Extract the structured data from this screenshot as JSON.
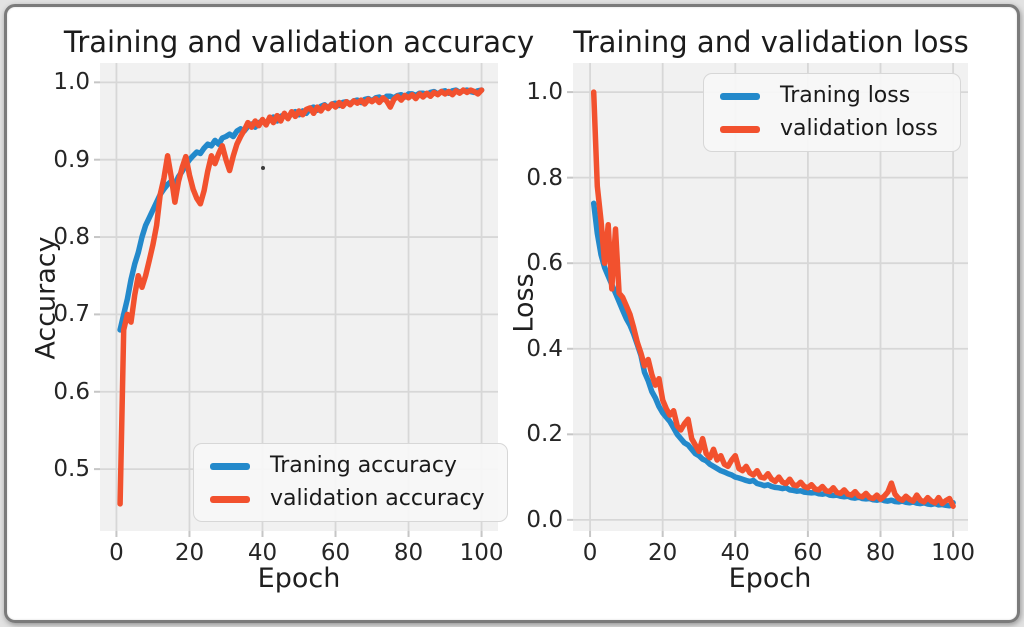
{
  "figure": {
    "background": "#ffffff",
    "outer_background": "#e2e2e2",
    "frame_border_color": "#7b7b7b"
  },
  "colors": {
    "plot_background": "#f1f1f1",
    "gridline": "#d7d7d7",
    "tick_mark": "#c6c6c6",
    "text": "#262626",
    "training_line": "#2389cb",
    "validation_line": "#f2512e",
    "legend_background": "#f7f7f7"
  },
  "chart_data": [
    {
      "type": "line",
      "title": "Training and validation accuracy",
      "xlabel": "Epoch",
      "ylabel": "Accuracy",
      "x_ticks": [
        0,
        20,
        40,
        60,
        80,
        100
      ],
      "x_tick_labels": [
        "0",
        "20",
        "40",
        "60",
        "80",
        "100"
      ],
      "y_ticks": [
        1.0,
        0.9,
        0.8,
        0.7,
        0.6,
        0.5
      ],
      "y_tick_labels": [
        "1.0",
        "0.9",
        "0.8",
        "0.7",
        "0.6",
        "0.5"
      ],
      "xlim": [
        -4.5,
        104.5
      ],
      "ylim": [
        0.42,
        1.025
      ],
      "grid": true,
      "legend_position": "lower right",
      "epochs": {
        "from": 1,
        "to": 100,
        "step": 1
      },
      "series": [
        {
          "name": "Traning accuracy",
          "color": "#2389cb",
          "values": [
            0.68,
            0.7,
            0.72,
            0.745,
            0.765,
            0.78,
            0.8,
            0.815,
            0.825,
            0.835,
            0.845,
            0.855,
            0.862,
            0.868,
            0.872,
            0.868,
            0.878,
            0.885,
            0.893,
            0.9,
            0.905,
            0.91,
            0.908,
            0.915,
            0.92,
            0.918,
            0.925,
            0.92,
            0.928,
            0.93,
            0.933,
            0.93,
            0.937,
            0.94,
            0.937,
            0.943,
            0.946,
            0.942,
            0.948,
            0.95,
            0.947,
            0.952,
            0.955,
            0.95,
            0.956,
            0.958,
            0.954,
            0.96,
            0.962,
            0.958,
            0.963,
            0.96,
            0.966,
            0.968,
            0.964,
            0.969,
            0.971,
            0.967,
            0.972,
            0.973,
            0.97,
            0.974,
            0.975,
            0.972,
            0.976,
            0.977,
            0.974,
            0.978,
            0.979,
            0.976,
            0.98,
            0.981,
            0.978,
            0.982,
            0.982,
            0.98,
            0.983,
            0.984,
            0.981,
            0.985,
            0.985,
            0.983,
            0.986,
            0.986,
            0.984,
            0.987,
            0.988,
            0.985,
            0.988,
            0.989,
            0.986,
            0.989,
            0.99,
            0.987,
            0.989,
            0.99,
            0.988,
            0.987,
            0.989,
            0.99
          ]
        },
        {
          "name": "validation accuracy",
          "color": "#f2512e",
          "values": [
            0.455,
            0.68,
            0.7,
            0.69,
            0.725,
            0.75,
            0.735,
            0.75,
            0.77,
            0.79,
            0.815,
            0.855,
            0.876,
            0.905,
            0.878,
            0.845,
            0.872,
            0.89,
            0.904,
            0.88,
            0.862,
            0.85,
            0.843,
            0.86,
            0.885,
            0.905,
            0.895,
            0.908,
            0.918,
            0.9,
            0.886,
            0.905,
            0.92,
            0.93,
            0.938,
            0.948,
            0.942,
            0.95,
            0.944,
            0.952,
            0.945,
            0.955,
            0.948,
            0.957,
            0.95,
            0.96,
            0.953,
            0.962,
            0.956,
            0.963,
            0.958,
            0.965,
            0.967,
            0.96,
            0.968,
            0.963,
            0.97,
            0.966,
            0.972,
            0.968,
            0.974,
            0.969,
            0.975,
            0.971,
            0.976,
            0.973,
            0.977,
            0.972,
            0.978,
            0.975,
            0.979,
            0.974,
            0.98,
            0.976,
            0.968,
            0.978,
            0.982,
            0.977,
            0.983,
            0.98,
            0.984,
            0.979,
            0.985,
            0.981,
            0.986,
            0.982,
            0.987,
            0.984,
            0.988,
            0.985,
            0.988,
            0.984,
            0.989,
            0.986,
            0.99,
            0.987,
            0.99,
            0.988,
            0.985,
            0.99
          ]
        }
      ]
    },
    {
      "type": "line",
      "title": "Training and validation loss",
      "xlabel": "Epoch",
      "ylabel": "Loss",
      "x_ticks": [
        0,
        20,
        40,
        60,
        80,
        100
      ],
      "x_tick_labels": [
        "0",
        "20",
        "40",
        "60",
        "80",
        "100"
      ],
      "y_ticks": [
        1.0,
        0.8,
        0.6,
        0.4,
        0.2,
        0.0
      ],
      "y_tick_labels": [
        "1.0",
        "0.8",
        "0.6",
        "0.4",
        "0.2",
        "0.0"
      ],
      "xlim": [
        -4.7,
        104.1
      ],
      "ylim": [
        -0.026,
        1.068
      ],
      "grid": true,
      "legend_position": "upper right",
      "epochs": {
        "from": 1,
        "to": 100,
        "step": 1
      },
      "series": [
        {
          "name": "Traning loss",
          "color": "#2389cb",
          "values": [
            0.74,
            0.67,
            0.62,
            0.59,
            0.57,
            0.55,
            0.53,
            0.51,
            0.49,
            0.47,
            0.455,
            0.435,
            0.41,
            0.385,
            0.345,
            0.325,
            0.3,
            0.285,
            0.265,
            0.25,
            0.24,
            0.23,
            0.215,
            0.2,
            0.19,
            0.18,
            0.175,
            0.165,
            0.155,
            0.15,
            0.142,
            0.138,
            0.13,
            0.125,
            0.12,
            0.115,
            0.112,
            0.108,
            0.105,
            0.1,
            0.098,
            0.095,
            0.092,
            0.09,
            0.092,
            0.085,
            0.083,
            0.08,
            0.082,
            0.078,
            0.076,
            0.075,
            0.073,
            0.075,
            0.07,
            0.069,
            0.067,
            0.068,
            0.065,
            0.064,
            0.063,
            0.064,
            0.061,
            0.06,
            0.062,
            0.058,
            0.057,
            0.058,
            0.055,
            0.054,
            0.055,
            0.052,
            0.051,
            0.053,
            0.05,
            0.049,
            0.05,
            0.047,
            0.046,
            0.048,
            0.045,
            0.044,
            0.046,
            0.043,
            0.042,
            0.044,
            0.041,
            0.04,
            0.042,
            0.039,
            0.038,
            0.04,
            0.037,
            0.036,
            0.038,
            0.035,
            0.036,
            0.034,
            0.033,
            0.04
          ]
        },
        {
          "name": "validation loss",
          "color": "#f2512e",
          "values": [
            1.0,
            0.78,
            0.7,
            0.6,
            0.69,
            0.54,
            0.68,
            0.53,
            0.52,
            0.5,
            0.48,
            0.45,
            0.415,
            0.39,
            0.36,
            0.375,
            0.34,
            0.315,
            0.33,
            0.28,
            0.26,
            0.245,
            0.255,
            0.22,
            0.21,
            0.225,
            0.235,
            0.19,
            0.175,
            0.16,
            0.19,
            0.155,
            0.145,
            0.165,
            0.14,
            0.15,
            0.13,
            0.125,
            0.14,
            0.15,
            0.12,
            0.115,
            0.125,
            0.11,
            0.105,
            0.115,
            0.1,
            0.098,
            0.108,
            0.095,
            0.09,
            0.1,
            0.088,
            0.085,
            0.095,
            0.082,
            0.08,
            0.088,
            0.078,
            0.075,
            0.082,
            0.072,
            0.07,
            0.078,
            0.068,
            0.066,
            0.075,
            0.064,
            0.062,
            0.07,
            0.06,
            0.058,
            0.066,
            0.056,
            0.054,
            0.062,
            0.052,
            0.05,
            0.058,
            0.048,
            0.055,
            0.065,
            0.086,
            0.06,
            0.05,
            0.046,
            0.055,
            0.048,
            0.044,
            0.058,
            0.046,
            0.042,
            0.052,
            0.044,
            0.04,
            0.052,
            0.038,
            0.045,
            0.05,
            0.032
          ]
        }
      ]
    }
  ]
}
